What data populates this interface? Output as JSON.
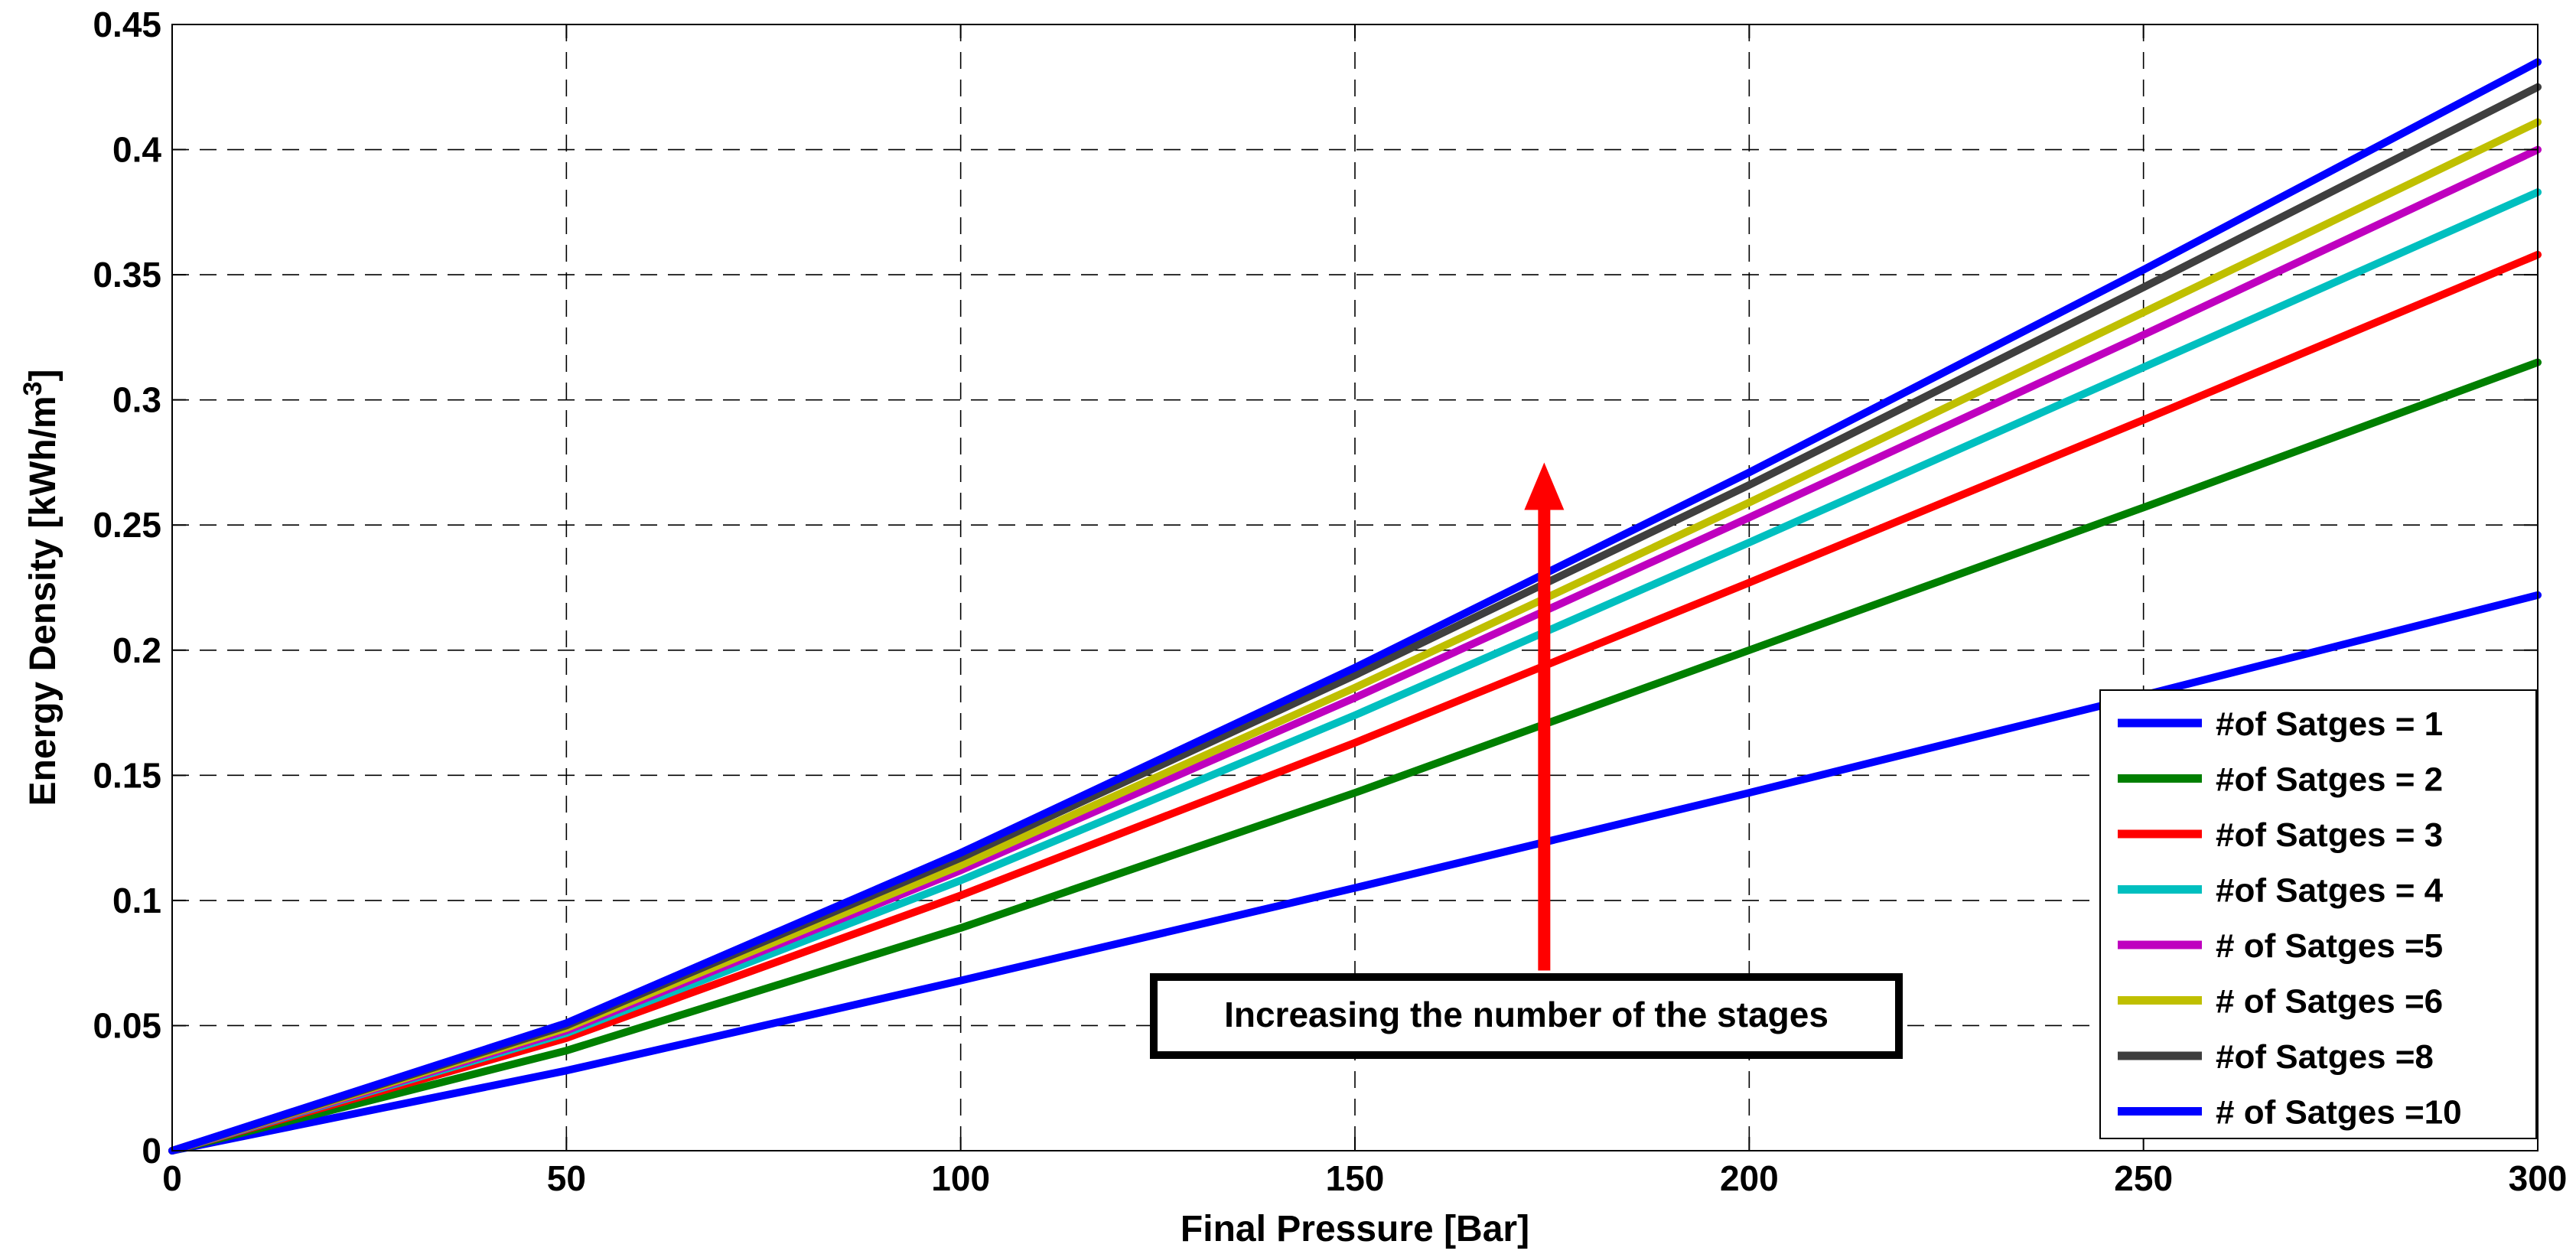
{
  "chart_data": {
    "type": "line",
    "title": "",
    "xlabel": "Final Pressure [Bar]",
    "ylabel_main": "Energy Density [kWh/m",
    "ylabel_sup": "3",
    "ylabel_close": "]",
    "xlim": [
      0,
      300
    ],
    "ylim": [
      0,
      0.45
    ],
    "xticks": [
      0,
      50,
      100,
      150,
      200,
      250,
      300
    ],
    "xtick_labels": [
      "0",
      "50",
      "100",
      "150",
      "200",
      "250",
      "300"
    ],
    "yticks": [
      0,
      0.05,
      0.1,
      0.15,
      0.2,
      0.25,
      0.3,
      0.35,
      0.4,
      0.45
    ],
    "ytick_labels": [
      "0",
      "0.05",
      "0.1",
      "0.15",
      "0.2",
      "0.25",
      "0.3",
      "0.35",
      "0.4",
      "0.45"
    ],
    "grid": true,
    "legend_position": "bottom-right",
    "series": [
      {
        "name": "#of Satges = 1",
        "color": "#0000ff",
        "x": [
          0,
          50,
          100,
          150,
          200,
          250,
          300
        ],
        "y": [
          0,
          0.032,
          0.068,
          0.105,
          0.143,
          0.182,
          0.222
        ]
      },
      {
        "name": "#of Satges = 2",
        "color": "#007f00",
        "x": [
          0,
          50,
          100,
          150,
          200,
          250,
          300
        ],
        "y": [
          0,
          0.04,
          0.089,
          0.143,
          0.2,
          0.257,
          0.315
        ]
      },
      {
        "name": "#of Satges = 3",
        "color": "#ff0000",
        "x": [
          0,
          50,
          100,
          150,
          200,
          250,
          300
        ],
        "y": [
          0,
          0.045,
          0.102,
          0.163,
          0.227,
          0.292,
          0.358
        ]
      },
      {
        "name": "#of Satges = 4",
        "color": "#00bfbf",
        "x": [
          0,
          50,
          100,
          150,
          200,
          250,
          300
        ],
        "y": [
          0,
          0.047,
          0.108,
          0.174,
          0.243,
          0.313,
          0.383
        ]
      },
      {
        "name": "# of Satges =5",
        "color": "#bf00bf",
        "x": [
          0,
          50,
          100,
          150,
          200,
          250,
          300
        ],
        "y": [
          0,
          0.048,
          0.112,
          0.181,
          0.253,
          0.326,
          0.4
        ]
      },
      {
        "name": "# of Satges =6",
        "color": "#bfbf00",
        "x": [
          0,
          50,
          100,
          150,
          200,
          250,
          300
        ],
        "y": [
          0,
          0.049,
          0.114,
          0.185,
          0.259,
          0.335,
          0.411
        ]
      },
      {
        "name": "#of Satges =8",
        "color": "#3f3f3f",
        "x": [
          0,
          50,
          100,
          150,
          200,
          250,
          300
        ],
        "y": [
          0,
          0.05,
          0.117,
          0.19,
          0.266,
          0.345,
          0.425
        ]
      },
      {
        "name": "# of Satges =10",
        "color": "#0000ff",
        "x": [
          0,
          50,
          100,
          150,
          200,
          250,
          300
        ],
        "y": [
          0,
          0.051,
          0.119,
          0.193,
          0.271,
          0.352,
          0.435
        ]
      }
    ],
    "annotation": {
      "text": "Increasing the number of the stages",
      "arrow_color": "#ff0000",
      "arrow_x": 174,
      "arrow_from_y": 0.072,
      "arrow_to_y": 0.275
    }
  }
}
